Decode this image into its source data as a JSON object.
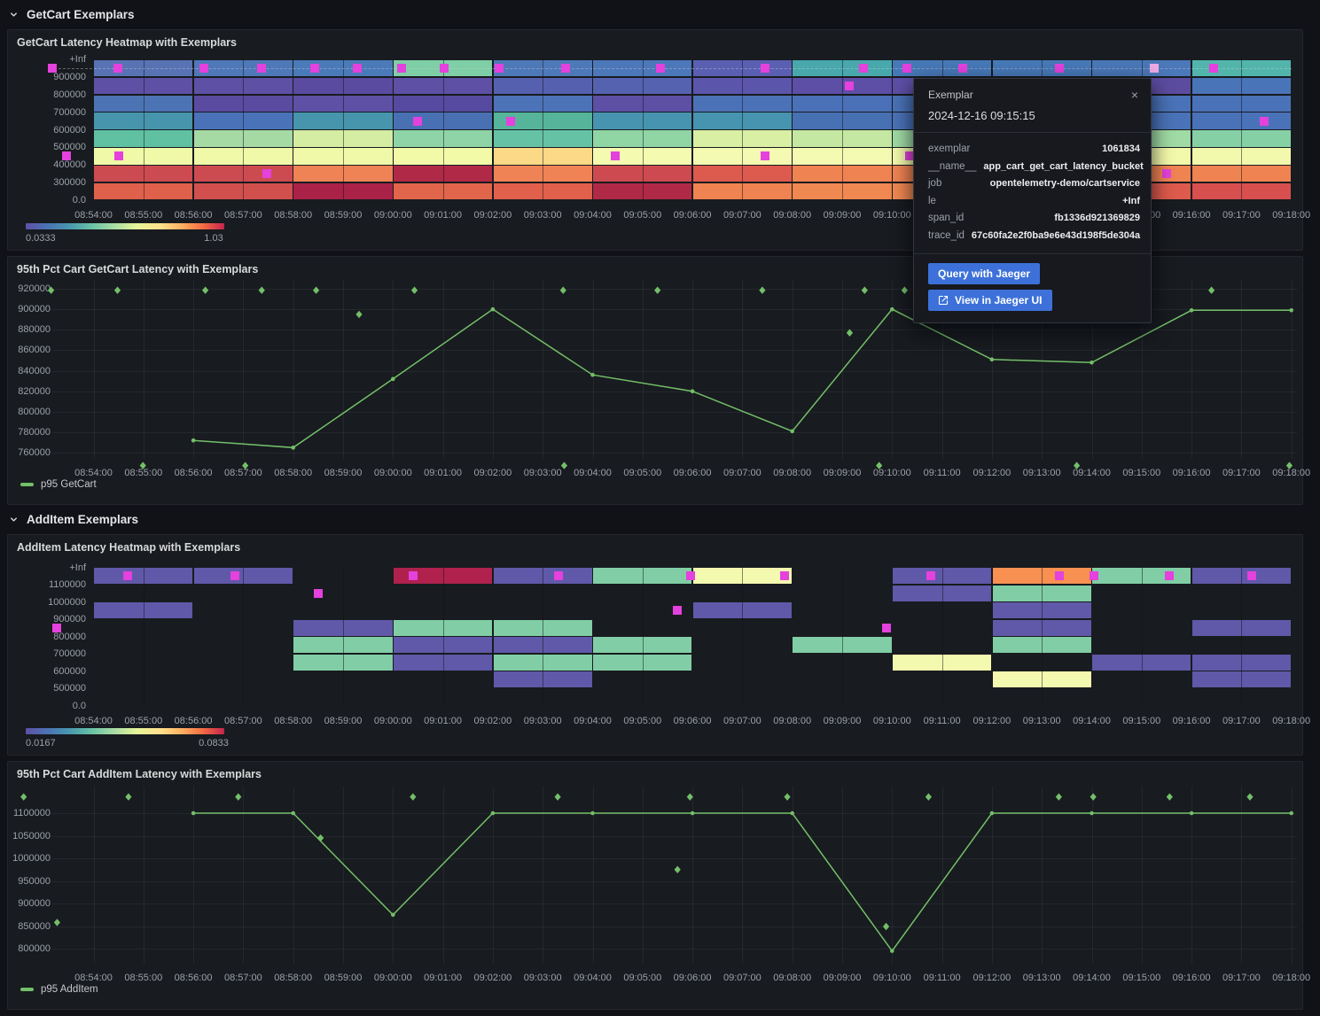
{
  "colors": {
    "exemplar": "#e441dd",
    "exemplar_selected": "#edaae6",
    "series_green": "#73bf69",
    "button_blue": "#3d71d9"
  },
  "sections": [
    {
      "title": "GetCart Exemplars"
    },
    {
      "title": "AddItem Exemplars"
    }
  ],
  "time_labels": [
    "08:54:00",
    "08:55:00",
    "08:56:00",
    "08:57:00",
    "08:58:00",
    "08:59:00",
    "09:00:00",
    "09:01:00",
    "09:02:00",
    "09:03:00",
    "09:04:00",
    "09:05:00",
    "09:06:00",
    "09:07:00",
    "09:08:00",
    "09:09:00",
    "09:10:00",
    "09:11:00",
    "09:12:00",
    "09:13:00",
    "09:14:00",
    "09:15:00",
    "09:16:00",
    "09:17:00",
    "09:18:00"
  ],
  "heatmap_getcart": {
    "title": "GetCart Latency Heatmap with Exemplars",
    "y_labels": [
      "+Inf",
      "900000",
      "800000",
      "700000",
      "600000",
      "500000",
      "400000",
      "300000",
      "0.0"
    ],
    "colorbar": {
      "min": "0.0333",
      "max": "1.03"
    },
    "dashed_guideline": true,
    "columns": [
      [
        "#5873b4",
        "#5e50a4",
        "#4c74b4",
        "#4695ac",
        "#5fc0a2",
        "#f0f9a7",
        "#cc4b50",
        "#df614b"
      ],
      [
        "#4e78b8",
        "#5e50a4",
        "#5a4ba0",
        "#4a72b8",
        "#a5daa4",
        "#f0f9a7",
        "#cc4b50",
        "#d1504e"
      ],
      [
        "#4a7ab8",
        "#5a4ba0",
        "#5e50a4",
        "#4695ac",
        "#d4eda2",
        "#f0f9a7",
        "#f08355",
        "#aa2247"
      ],
      [
        "#7ecfa6",
        "#5e50a4",
        "#564aa0",
        "#4a70b4",
        "#8ed4a6",
        "#f2faa8",
        "#b02946",
        "#e0654a"
      ],
      [
        "#4e79b8",
        "#5560ae",
        "#4c73b8",
        "#55b49a",
        "#66c2a5",
        "#fcd987",
        "#f08355",
        "#e0604c"
      ],
      [
        "#4c78ba",
        "#5562b0",
        "#5d4fa4",
        "#4794b0",
        "#90d5a4",
        "#f4fab0",
        "#cd4b50",
        "#b02946"
      ],
      [
        "#5a5fb2",
        "#5c55ac",
        "#4b72b6",
        "#4794b0",
        "#d8efa4",
        "#f5fab2",
        "#dd5a4e",
        "#ef8351"
      ],
      [
        "#48a8ac",
        "#5d4fa6",
        "#4a70b8",
        "#4871b4",
        "#c4e8a2",
        "#f5fab2",
        "#ef8351",
        "#f08851"
      ],
      [
        "#4779b8",
        "#5d4fa6",
        "#4a72b8",
        "#4a72b8",
        "#a0daa4",
        "#f2f9aa",
        "#ef8351",
        "#f08851"
      ],
      [
        "#4779b8",
        "#5d4fa6",
        "#4a72b8",
        "#4a72b8",
        "#a0daa4",
        "#f2f9aa",
        "#ef8351",
        "#e0604c"
      ],
      [
        "#4a78b8",
        "#5c4ca0",
        "#4a72b8",
        "#4a72b8",
        "#a0daa4",
        "#f2f9aa",
        "#ef8351",
        "#dd5a4c"
      ],
      [
        "#52b5ac",
        "#4a74b8",
        "#4a72b8",
        "#4a72b8",
        "#86d0a6",
        "#f2f9ac",
        "#ef8351",
        "#d74f4e"
      ]
    ],
    "exemplars": [
      {
        "t": -0.83,
        "r": 0
      },
      {
        "t": 0.48,
        "r": 0
      },
      {
        "t": 2.22,
        "r": 0
      },
      {
        "t": 3.36,
        "r": 0
      },
      {
        "t": 4.44,
        "r": 0
      },
      {
        "t": 5.28,
        "r": 0
      },
      {
        "t": 6.18,
        "r": 0
      },
      {
        "t": 7.03,
        "r": 0
      },
      {
        "t": 8.13,
        "r": 0
      },
      {
        "t": 9.45,
        "r": 0
      },
      {
        "t": 11.35,
        "r": 0
      },
      {
        "t": 13.46,
        "r": 0
      },
      {
        "t": 15.43,
        "r": 0
      },
      {
        "t": 16.29,
        "r": 0
      },
      {
        "t": 17.41,
        "r": 0
      },
      {
        "t": 19.36,
        "r": 0
      },
      {
        "t": 21.26,
        "r": 0,
        "hl": true
      },
      {
        "t": 22.45,
        "r": 0
      },
      {
        "t": 15.15,
        "r": 1
      },
      {
        "t": 6.5,
        "r": 3
      },
      {
        "t": 8.35,
        "r": 3
      },
      {
        "t": 23.45,
        "r": 3
      },
      {
        "t": -0.55,
        "r": 5
      },
      {
        "t": 0.5,
        "r": 5
      },
      {
        "t": 10.45,
        "r": 5
      },
      {
        "t": 13.45,
        "r": 5
      },
      {
        "t": 16.35,
        "r": 5
      },
      {
        "t": 3.48,
        "r": 6
      },
      {
        "t": 21.5,
        "r": 6
      }
    ]
  },
  "line_getcart": {
    "title": "95th Pct Cart GetCart Latency with Exemplars",
    "legend": "p95 GetCart",
    "y_ticks": [
      920000,
      900000,
      880000,
      860000,
      840000,
      820000,
      800000,
      780000,
      760000
    ],
    "points": {
      "t": [
        2,
        4,
        6,
        8,
        10,
        12,
        14,
        16,
        18,
        20,
        22,
        24
      ],
      "v": [
        772000,
        765000,
        832000,
        900000,
        836000,
        820000,
        781000,
        900000,
        851000,
        848000,
        899000,
        899000
      ]
    },
    "exemplars": [
      {
        "t": -0.85,
        "v": 918500
      },
      {
        "t": 0.48,
        "v": 918500
      },
      {
        "t": 2.24,
        "v": 918500
      },
      {
        "t": 3.37,
        "v": 918500
      },
      {
        "t": 4.46,
        "v": 918500
      },
      {
        "t": 6.43,
        "v": 918500
      },
      {
        "t": 9.41,
        "v": 918500
      },
      {
        "t": 11.3,
        "v": 918500
      },
      {
        "t": 13.4,
        "v": 918500
      },
      {
        "t": 15.45,
        "v": 918500
      },
      {
        "t": 16.25,
        "v": 918500
      },
      {
        "t": 22.4,
        "v": 918500
      },
      {
        "t": 5.32,
        "v": 895000
      },
      {
        "t": 15.15,
        "v": 877000
      },
      {
        "t": 0.99,
        "v": 747500
      },
      {
        "t": 3.04,
        "v": 747500
      },
      {
        "t": 9.43,
        "v": 747500
      },
      {
        "t": 15.74,
        "v": 747500
      },
      {
        "t": 19.7,
        "v": 747500
      },
      {
        "t": 23.96,
        "v": 747500
      }
    ]
  },
  "heatmap_additem": {
    "title": "AddItem Latency Heatmap with Exemplars",
    "y_labels": [
      "+Inf",
      "1100000",
      "1000000",
      "900000",
      "800000",
      "700000",
      "600000",
      "500000",
      "0.0"
    ],
    "colorbar": {
      "min": "0.0167",
      "max": "0.0833"
    },
    "dashed_guideline": false,
    "columns": [
      [
        "#6058a8",
        null,
        "#6058a8",
        null,
        null,
        null,
        null,
        null
      ],
      [
        "#6058a8",
        null,
        null,
        null,
        null,
        null,
        null,
        null
      ],
      [
        null,
        null,
        null,
        "#6058a8",
        "#81cea6",
        "#81cea6",
        null,
        null
      ],
      [
        "#b0214d",
        null,
        null,
        "#81cea6",
        "#6058a8",
        "#6058a8",
        null,
        null
      ],
      [
        "#6058a8",
        null,
        null,
        "#81cea6",
        "#6058a8",
        "#81cea6",
        "#6058a8",
        null
      ],
      [
        "#81cea6",
        null,
        null,
        null,
        "#81cea6",
        "#81cea6",
        null,
        null
      ],
      [
        "#f4f9b0",
        null,
        "#6058a8",
        null,
        null,
        null,
        null,
        null
      ],
      [
        null,
        null,
        null,
        null,
        "#81cea6",
        null,
        null,
        null
      ],
      [
        "#6058a8",
        "#6058a8",
        null,
        null,
        null,
        "#f4f9b0",
        null,
        null
      ],
      [
        "#f79051",
        "#81cea6",
        "#6058a8",
        "#6058a8",
        "#81cea6",
        null,
        "#f4f9b0",
        null
      ],
      [
        "#81cea6",
        null,
        null,
        null,
        null,
        "#6058a8",
        null,
        null
      ],
      [
        "#6058a8",
        null,
        null,
        "#6058a8",
        null,
        "#6058a8",
        "#6058a8",
        null
      ]
    ],
    "exemplars": [
      {
        "t": 0.69,
        "r": 0
      },
      {
        "t": 2.84,
        "r": 0
      },
      {
        "t": 6.41,
        "r": 0
      },
      {
        "t": 9.32,
        "r": 0
      },
      {
        "t": 11.96,
        "r": 0
      },
      {
        "t": 13.85,
        "r": 0
      },
      {
        "t": 16.77,
        "r": 0
      },
      {
        "t": 19.36,
        "r": 0
      },
      {
        "t": 20.05,
        "r": 0
      },
      {
        "t": 21.56,
        "r": 0
      },
      {
        "t": 23.2,
        "r": 0
      },
      {
        "t": 4.51,
        "r": 1
      },
      {
        "t": 11.7,
        "r": 2
      },
      {
        "t": -0.73,
        "r": 3
      },
      {
        "t": 15.88,
        "r": 3
      }
    ]
  },
  "line_additem": {
    "title": "95th Pct Cart AddItem Latency with Exemplars",
    "legend": "p95 AddItem",
    "y_ticks": [
      1100000,
      1050000,
      1000000,
      950000,
      900000,
      850000,
      800000
    ],
    "points": {
      "t": [
        2,
        4,
        6,
        8,
        10,
        12,
        14,
        16,
        18,
        20,
        22,
        24
      ],
      "v": [
        1100000,
        1100000,
        875000,
        1100000,
        1100000,
        1100000,
        1100000,
        795000,
        1100000,
        1100000,
        1100000,
        1100000
      ]
    },
    "exemplars": [
      {
        "t": -1.4,
        "v": 1136000
      },
      {
        "t": 0.7,
        "v": 1136000
      },
      {
        "t": 2.9,
        "v": 1136000
      },
      {
        "t": 6.4,
        "v": 1136000
      },
      {
        "t": 9.3,
        "v": 1136000
      },
      {
        "t": 11.95,
        "v": 1136000
      },
      {
        "t": 13.9,
        "v": 1136000
      },
      {
        "t": 16.73,
        "v": 1136000
      },
      {
        "t": 19.34,
        "v": 1136000
      },
      {
        "t": 20.03,
        "v": 1136000
      },
      {
        "t": 21.56,
        "v": 1136000
      },
      {
        "t": 23.17,
        "v": 1136000
      },
      {
        "t": -0.73,
        "v": 858000
      },
      {
        "t": 4.55,
        "v": 1045000
      },
      {
        "t": 11.7,
        "v": 975000
      },
      {
        "t": 15.88,
        "v": 849000
      }
    ]
  },
  "tooltip": {
    "title": "Exemplar",
    "close": "×",
    "timestamp": "2024-12-16 09:15:15",
    "rows": [
      {
        "label": "exemplar",
        "value": "1061834"
      },
      {
        "label": "__name__",
        "value": "app_cart_get_cart_latency_bucket"
      },
      {
        "label": "job",
        "value": "opentelemetry-demo/cartservice"
      },
      {
        "label": "le",
        "value": "+Inf"
      },
      {
        "label": "span_id",
        "value": "fb1336d921369829"
      },
      {
        "label": "trace_id",
        "value": "67c60fa2e2f0ba9e6e43d198f5de304a"
      }
    ],
    "buttons": [
      {
        "label": "Query with Jaeger"
      },
      {
        "label": "View in Jaeger UI",
        "icon": "external-link-icon"
      }
    ]
  }
}
